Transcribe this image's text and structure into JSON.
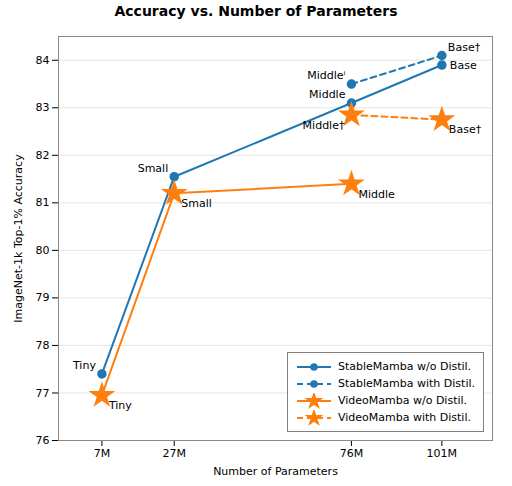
{
  "chart_data": {
    "type": "line",
    "title": "Accuracy vs. Number of Parameters",
    "xlabel": "Number of Parameters",
    "ylabel": "ImageNet-1k Top-1% Accuracy",
    "xlim": [
      -5,
      115
    ],
    "xticks": [
      {
        "value": 7,
        "label": "7M"
      },
      {
        "value": 27,
        "label": "27M"
      },
      {
        "value": 76,
        "label": "76M"
      },
      {
        "value": 101,
        "label": "101M"
      }
    ],
    "ylim": [
      76,
      84.5
    ],
    "yticks": [
      76,
      77,
      78,
      79,
      80,
      81,
      82,
      83,
      84
    ],
    "grid": "y",
    "legend": "lower right",
    "series": [
      {
        "name": "StableMamba w/o Distil.",
        "color": "#1f77b4",
        "marker": "circle",
        "line_style": "solid",
        "x": [
          7,
          27,
          76,
          101
        ],
        "values": [
          77.4,
          81.55,
          83.1,
          83.9
        ],
        "labels": [
          "Tiny",
          "Small",
          "Middle",
          "Base"
        ]
      },
      {
        "name": "StableMamba with Distil.",
        "color": "#1f77b4",
        "marker": "circle",
        "line_style": "dashed",
        "x": [
          76,
          101
        ],
        "values": [
          83.5,
          84.1
        ],
        "labels": [
          "Middleⁱ",
          "Base†"
        ]
      },
      {
        "name": "VideoMamba w/o Distil.",
        "color": "#ff7f0e",
        "marker": "star",
        "line_style": "solid",
        "x": [
          7,
          27,
          76
        ],
        "values": [
          76.95,
          81.2,
          81.4
        ],
        "labels": [
          "Tiny",
          "Small",
          "Middle"
        ]
      },
      {
        "name": "VideoMamba with Distil.",
        "color": "#ff7f0e",
        "marker": "star",
        "line_style": "dashed",
        "x": [
          76,
          101
        ],
        "values": [
          82.85,
          82.75
        ],
        "labels": [
          "Middle†",
          "Base†"
        ]
      }
    ]
  }
}
